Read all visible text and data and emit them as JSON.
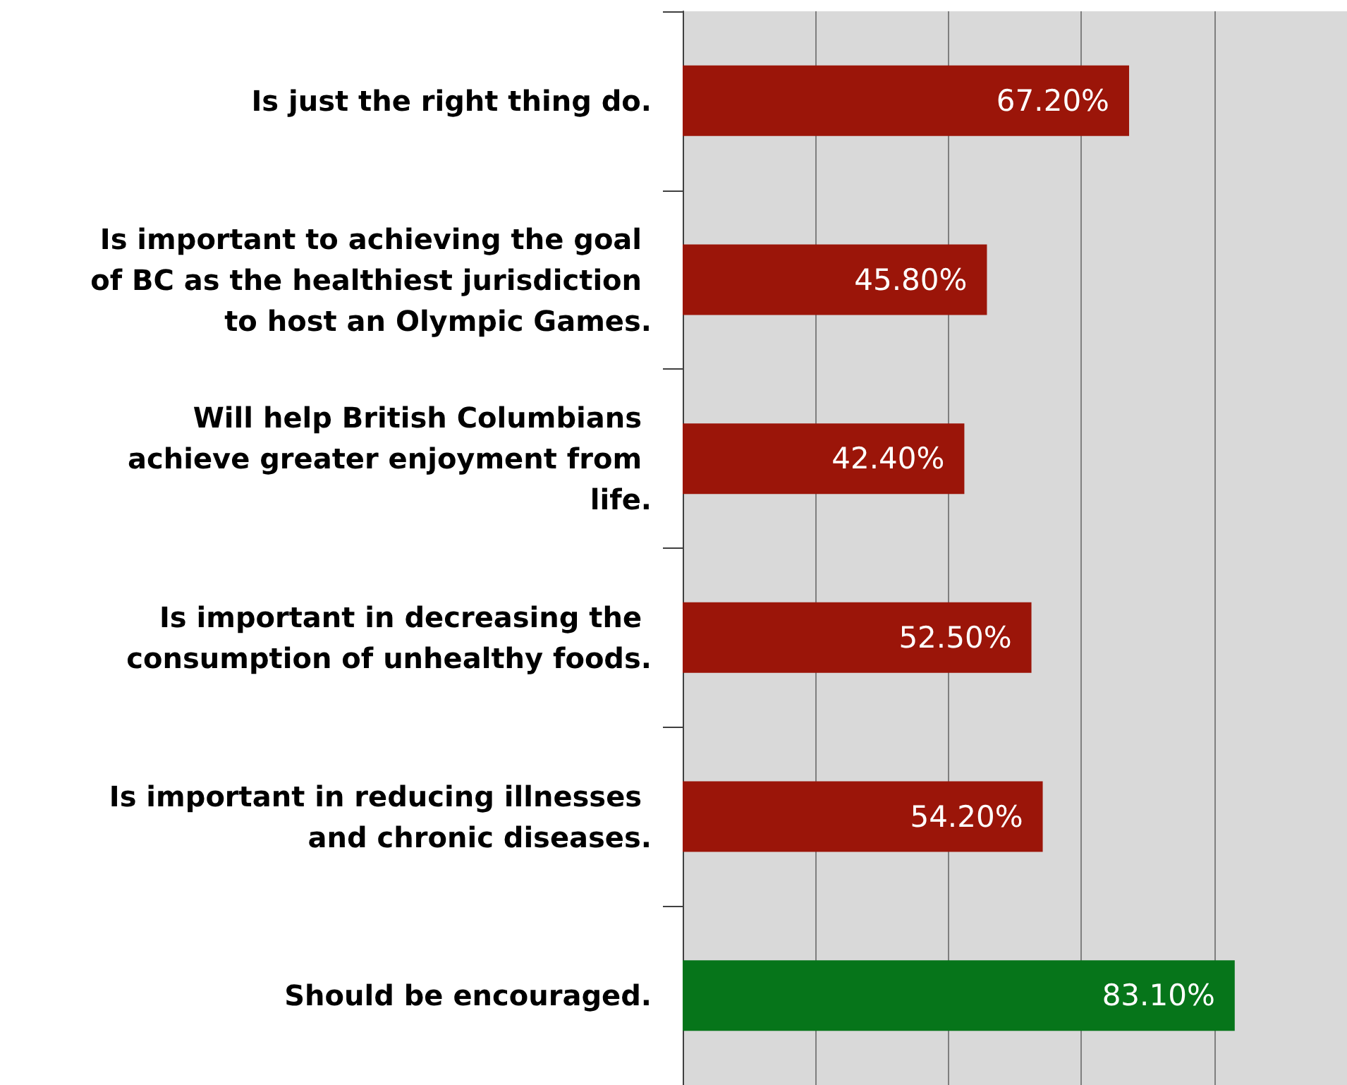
{
  "chart_data": {
    "type": "bar",
    "orientation": "horizontal",
    "categories": [
      "Is just the right thing do.",
      "Is important to achieving the goal of BC as the healthiest jurisdiction to host an Olympic Games.",
      "Will help British Columbians achieve greater enjoyment from life.",
      "Is important in decreasing the consumption of unhealthy foods.",
      "Is important in reducing illnesses and chronic diseases.",
      "Should be encouraged."
    ],
    "values": [
      67.2,
      45.8,
      42.4,
      52.5,
      54.2,
      83.1
    ],
    "value_labels": [
      "67.20%",
      "45.80%",
      "42.40%",
      "52.50%",
      "54.20%",
      "83.10%"
    ],
    "colors": [
      "#9b1509",
      "#9b1509",
      "#9b1509",
      "#9b1509",
      "#9b1509",
      "#06751a"
    ],
    "xlim": [
      0,
      100
    ],
    "xticks": [
      {
        "value": 0,
        "label": null
      },
      {
        "value": 20,
        "label": null
      },
      {
        "value": 40,
        "label": null
      },
      {
        "value": 60,
        "label": null
      },
      {
        "value": 80,
        "label": null
      },
      {
        "value": 100,
        "label": null
      }
    ],
    "tick_labels": "y",
    "grid": "x"
  }
}
